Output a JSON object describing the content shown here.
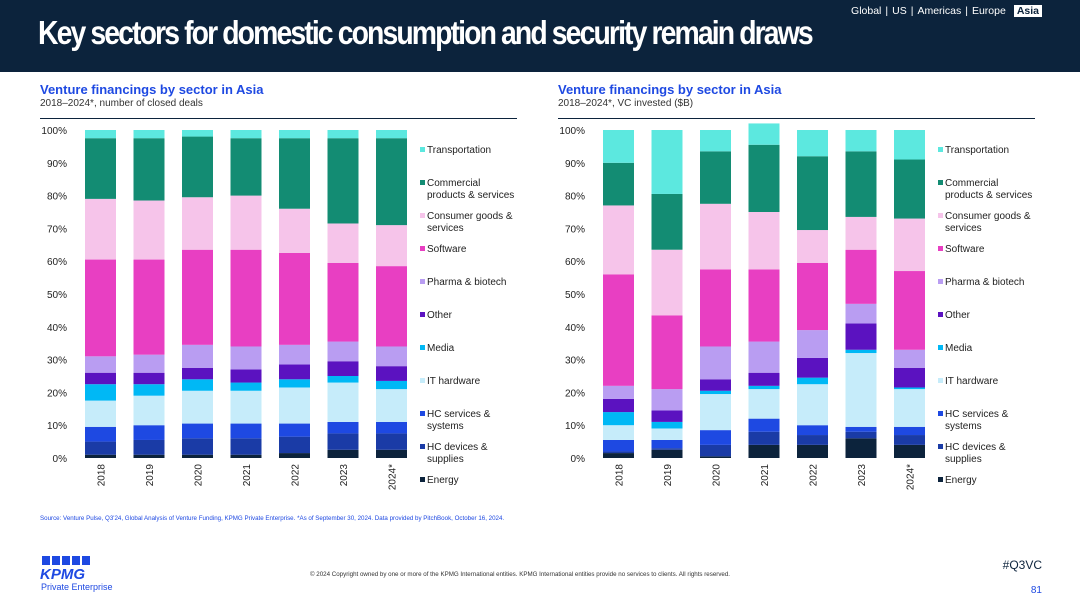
{
  "header": {
    "title": "Key sectors for domestic consumption and security remain draws",
    "regions": [
      "Global",
      "US",
      "Americas",
      "Europe",
      "Asia"
    ],
    "active_region": "Asia"
  },
  "chart_data": [
    {
      "type": "bar",
      "stacked": true,
      "title": "Venture financings by sector in Asia",
      "subtitle": "2018–2024*, number of closed deals",
      "categories": [
        "2018",
        "2019",
        "2020",
        "2021",
        "2022",
        "2023",
        "2024*"
      ],
      "ylim": [
        0,
        100
      ],
      "yticks": [
        "0%",
        "10%",
        "20%",
        "30%",
        "40%",
        "50%",
        "60%",
        "70%",
        "80%",
        "90%",
        "100%"
      ],
      "series": [
        {
          "name": "Energy",
          "values": [
            1,
            1,
            1,
            1,
            1.5,
            2.5,
            2.5
          ]
        },
        {
          "name": "HC devices & supplies",
          "values": [
            4,
            4.5,
            5,
            5,
            5,
            5,
            5
          ]
        },
        {
          "name": "HC services & systems",
          "values": [
            4.5,
            4.5,
            4.5,
            4.5,
            4,
            3.5,
            3.5
          ]
        },
        {
          "name": "IT hardware",
          "values": [
            8,
            9,
            10,
            10,
            11,
            12,
            10
          ]
        },
        {
          "name": "Media",
          "values": [
            5,
            3.5,
            3.5,
            2.5,
            2.5,
            2,
            2.5
          ]
        },
        {
          "name": "Other",
          "values": [
            3.5,
            3.5,
            3.5,
            4,
            4.5,
            4.5,
            4.5
          ]
        },
        {
          "name": "Pharma & biotech",
          "values": [
            5,
            5.5,
            7,
            7,
            6,
            6,
            6
          ]
        },
        {
          "name": "Software",
          "values": [
            29.5,
            29,
            29,
            29.5,
            28,
            24,
            24.5
          ]
        },
        {
          "name": "Consumer goods & services",
          "values": [
            18.5,
            18,
            16,
            16.5,
            13.5,
            12,
            12.5
          ]
        },
        {
          "name": "Commercial products & services",
          "values": [
            18.5,
            19,
            18.5,
            17.5,
            21.5,
            26,
            26.5
          ]
        },
        {
          "name": "Transportation",
          "values": [
            2.5,
            2.5,
            2,
            2.5,
            2.5,
            2.5,
            2.5
          ]
        }
      ]
    },
    {
      "type": "bar",
      "stacked": true,
      "title": "Venture financings by sector in Asia",
      "subtitle": "2018–2024*, VC invested ($B)",
      "categories": [
        "2018",
        "2019",
        "2020",
        "2021",
        "2022",
        "2023",
        "2024*"
      ],
      "ylim": [
        0,
        100
      ],
      "yticks": [
        "0%",
        "10%",
        "20%",
        "30%",
        "40%",
        "50%",
        "60%",
        "70%",
        "80%",
        "90%",
        "100%"
      ],
      "series": [
        {
          "name": "Energy",
          "values": [
            1.5,
            2.5,
            0.5,
            4,
            4,
            6,
            4
          ]
        },
        {
          "name": "HC devices & supplies",
          "values": [
            0.5,
            0.5,
            3.5,
            4,
            3,
            2,
            3
          ]
        },
        {
          "name": "HC services & systems",
          "values": [
            3.5,
            2.5,
            4.5,
            4,
            3,
            1.5,
            2.5
          ]
        },
        {
          "name": "IT hardware",
          "values": [
            4.5,
            3.5,
            11,
            9,
            12.5,
            22.5,
            11.5
          ]
        },
        {
          "name": "Media",
          "values": [
            4,
            2,
            1,
            1,
            2,
            1,
            0.5
          ]
        },
        {
          "name": "Other",
          "values": [
            4,
            3.5,
            3.5,
            4,
            6,
            8,
            6
          ]
        },
        {
          "name": "Pharma & biotech",
          "values": [
            4,
            6.5,
            10,
            9.5,
            8.5,
            6,
            5.5
          ]
        },
        {
          "name": "Software",
          "values": [
            34,
            22.5,
            23.5,
            22,
            20.5,
            16.5,
            24
          ]
        },
        {
          "name": "Consumer goods & services",
          "values": [
            21,
            20,
            20,
            17.5,
            10,
            10,
            16
          ]
        },
        {
          "name": "Commercial products & services",
          "values": [
            13,
            17,
            16,
            20.5,
            22.5,
            20,
            18
          ]
        },
        {
          "name": "Transportation",
          "values": [
            10,
            19.5,
            6.5,
            6.5,
            8,
            6.5,
            9
          ]
        }
      ]
    }
  ],
  "colors": {
    "Energy": "#0c233c",
    "HC devices & supplies": "#1a3ba6",
    "HC services & systems": "#1e49e2",
    "IT hardware": "#c6ecfa",
    "Media": "#00b8f5",
    "Other": "#5b12c0",
    "Pharma & biotech": "#b99df2",
    "Software": "#e83fc2",
    "Consumer goods & services": "#f6c4ea",
    "Commercial products & services": "#138c73",
    "Transportation": "#5ce8df"
  },
  "legend": [
    {
      "name": "Transportation",
      "lines": [
        "Transportation"
      ]
    },
    {
      "name": "Commercial products & services",
      "lines": [
        "Commercial",
        "products & services"
      ]
    },
    {
      "name": "Consumer goods & services",
      "lines": [
        "Consumer goods &",
        "services"
      ]
    },
    {
      "name": "Software",
      "lines": [
        "Software"
      ]
    },
    {
      "name": "Pharma & biotech",
      "lines": [
        "Pharma & biotech"
      ]
    },
    {
      "name": "Other",
      "lines": [
        "Other"
      ]
    },
    {
      "name": "Media",
      "lines": [
        "Media"
      ]
    },
    {
      "name": "IT hardware",
      "lines": [
        "IT hardware"
      ]
    },
    {
      "name": "HC services & systems",
      "lines": [
        "HC services &",
        "systems"
      ]
    },
    {
      "name": "HC devices & supplies",
      "lines": [
        "HC devices &",
        "supplies"
      ]
    },
    {
      "name": "Energy",
      "lines": [
        "Energy"
      ]
    }
  ],
  "footer": {
    "source": "Source: Venture Pulse, Q3'24, Global Analysis of Venture Funding, KPMG Private Enterprise. *As of September 30, 2024. Data provided by PitchBook, October 16, 2024.",
    "copyright": "© 2024 Copyright owned by one or more of the KPMG International entities. KPMG International entities provide no services to clients. All rights reserved.",
    "logo_text": "KPMG",
    "logo_subtext": "Private Enterprise",
    "hashtag": "#Q3VC",
    "page_number": "81"
  }
}
